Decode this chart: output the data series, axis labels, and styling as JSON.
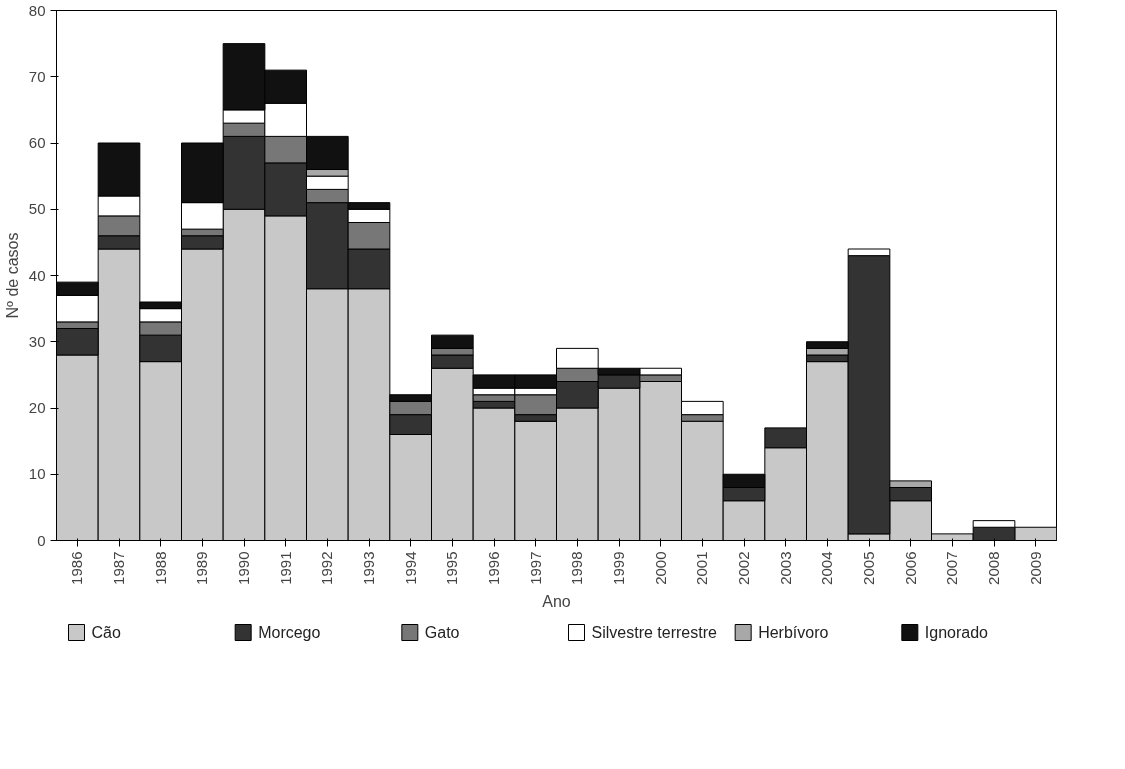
{
  "chart_data": {
    "type": "bar",
    "stacked": true,
    "xlabel": "Ano",
    "ylabel": "Nº de casos",
    "categories": [
      "1986",
      "1987",
      "1988",
      "1989",
      "1990",
      "1991",
      "1992",
      "1993",
      "1994",
      "1995",
      "1996",
      "1997",
      "1998",
      "1999",
      "2000",
      "2001",
      "2002",
      "2003",
      "2004",
      "2005",
      "2006",
      "2007",
      "2008",
      "2009"
    ],
    "series": [
      {
        "name": "Cão",
        "color": "#c8c8c8",
        "values": [
          28,
          44,
          27,
          44,
          50,
          49,
          38,
          38,
          16,
          26,
          20,
          18,
          20,
          23,
          24,
          18,
          6,
          14,
          27,
          1,
          6,
          1,
          0,
          2
        ]
      },
      {
        "name": "Morcego",
        "color": "#333333",
        "values": [
          4,
          2,
          4,
          2,
          11,
          8,
          13,
          6,
          3,
          2,
          1,
          1,
          4,
          2,
          0,
          0,
          2,
          3,
          1,
          42,
          2,
          0,
          2,
          0
        ]
      },
      {
        "name": "Gato",
        "color": "#777777",
        "values": [
          1,
          3,
          2,
          1,
          2,
          4,
          2,
          4,
          2,
          1,
          1,
          3,
          2,
          0,
          1,
          1,
          0,
          0,
          0,
          0,
          0,
          0,
          0,
          0
        ]
      },
      {
        "name": "Silvestre terrestre",
        "color": "#ffffff",
        "values": [
          4,
          3,
          2,
          4,
          2,
          5,
          2,
          2,
          0,
          0,
          1,
          1,
          3,
          0,
          1,
          2,
          0,
          0,
          0,
          1,
          0,
          0,
          1,
          0
        ]
      },
      {
        "name": "Herbívoro",
        "color": "#a8a8a8",
        "values": [
          0,
          0,
          0,
          0,
          0,
          0,
          1,
          0,
          0,
          0,
          0,
          0,
          0,
          0,
          0,
          0,
          0,
          0,
          1,
          0,
          1,
          0,
          0,
          0
        ]
      },
      {
        "name": "Ignorado",
        "color": "#111111",
        "values": [
          2,
          8,
          1,
          9,
          10,
          5,
          5,
          1,
          1,
          2,
          2,
          2,
          0,
          1,
          0,
          0,
          2,
          0,
          1,
          0,
          0,
          0,
          0,
          0
        ]
      }
    ],
    "ylim": [
      0,
      80
    ],
    "yticks": [
      0,
      10,
      20,
      30,
      40,
      50,
      60,
      70,
      80
    ],
    "grid": false,
    "legend": "bottom"
  }
}
